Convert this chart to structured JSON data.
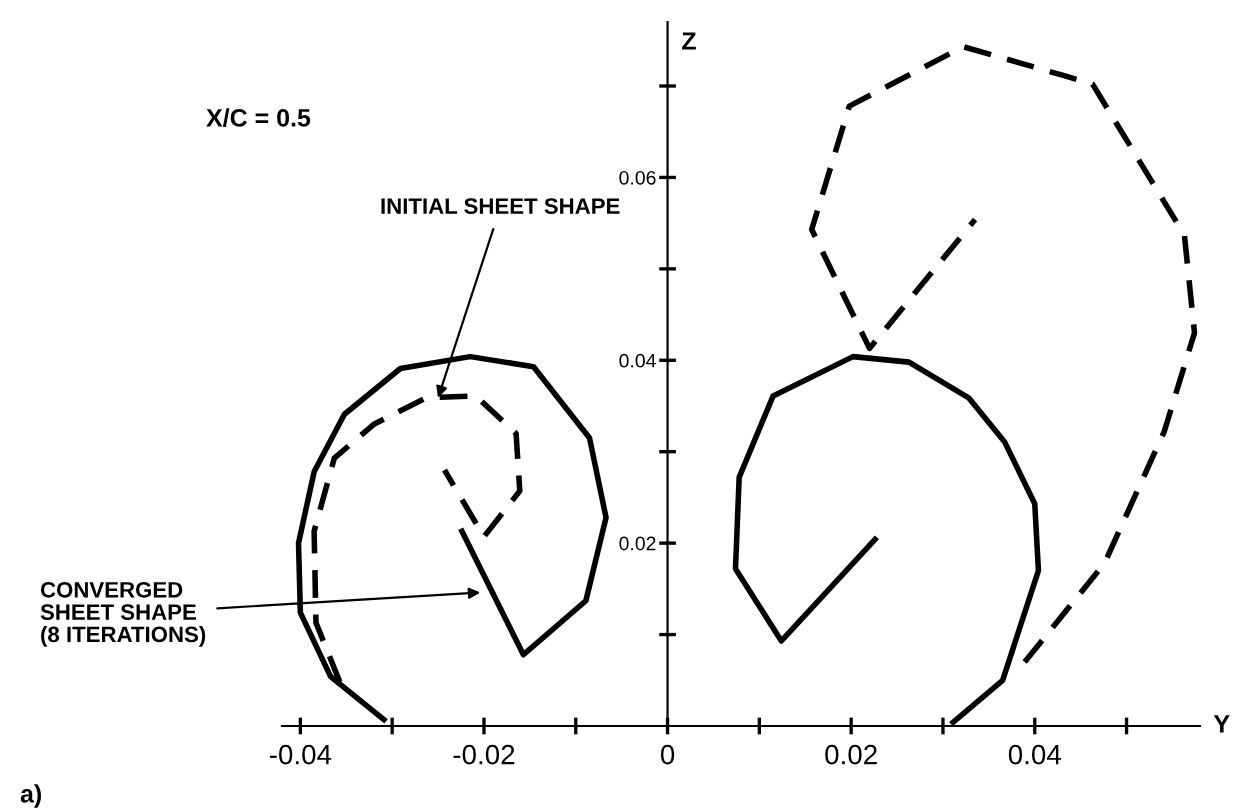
{
  "chart_data": {
    "type": "line",
    "xlabel": "Y",
    "ylabel": "Z",
    "xlim": [
      -0.042,
      0.058
    ],
    "ylim": [
      0,
      0.077
    ],
    "xticks": [
      -0.04,
      {
        "value": -0.03,
        "label": null
      },
      -0.02,
      {
        "value": -0.01,
        "label": null
      },
      0,
      {
        "value": 0.01,
        "label": null
      },
      0.02,
      {
        "value": 0.03,
        "label": null
      },
      0.04,
      {
        "value": 0.05,
        "label": null
      }
    ],
    "yticks": [
      {
        "value": 0.01,
        "label": null
      },
      0.02,
      {
        "value": 0.03,
        "label": null
      },
      0.04,
      {
        "value": 0.05,
        "label": null
      },
      0.06,
      {
        "value": 0.07,
        "label": null
      }
    ],
    "grid": false,
    "legend": false,
    "marker": "none",
    "series": [
      {
        "color": "#000000",
        "line_style": "solid",
        "x": [
          -0.0309,
          -0.0367,
          -0.04,
          -0.0402,
          -0.0385,
          -0.0352,
          -0.0291,
          -0.0215,
          -0.0146,
          -0.0085,
          -0.0067,
          -0.0089,
          -0.0157,
          -0.0224
        ],
        "values": [
          0.0007,
          0.0054,
          0.0124,
          0.02,
          0.0278,
          0.0341,
          0.0391,
          0.0404,
          0.0393,
          0.0315,
          0.0228,
          0.0137,
          0.0078,
          0.0213
        ]
      },
      {
        "color": "#000000",
        "line_style": "dashed",
        "x": [
          -0.0357,
          -0.0383,
          -0.0385,
          -0.0363,
          -0.032,
          -0.0263,
          -0.0209,
          -0.0165,
          -0.0161,
          -0.02,
          -0.0243
        ],
        "values": [
          0.0048,
          0.0113,
          0.0213,
          0.0293,
          0.033,
          0.0359,
          0.0361,
          0.032,
          0.0257,
          0.0207,
          0.028
        ]
      },
      {
        "color": "#000000",
        "line_style": "solid",
        "x": [
          0.0311,
          0.0365,
          0.0404,
          0.04,
          0.0367,
          0.0328,
          0.0263,
          0.0202,
          0.0115,
          0.0078,
          0.0074,
          0.0124,
          0.0226
        ],
        "values": [
          0.0004,
          0.005,
          0.017,
          0.0243,
          0.0311,
          0.0359,
          0.0398,
          0.0404,
          0.0361,
          0.0272,
          0.0172,
          0.0093,
          0.0204
        ]
      },
      {
        "color": "#000000",
        "line_style": "dashed",
        "x": [
          0.0389,
          0.0476,
          0.0541,
          0.0574,
          0.0563,
          0.0463,
          0.0433,
          0.0322,
          0.0198,
          0.0157,
          0.022,
          0.0335
        ],
        "values": [
          0.007,
          0.0178,
          0.0322,
          0.043,
          0.0537,
          0.0702,
          0.0711,
          0.0743,
          0.0678,
          0.0543,
          0.0413,
          0.0554
        ]
      }
    ],
    "annotations": [
      "X/C = 0.5",
      {
        "text": "INITIAL SHEET SHAPE",
        "x": -0.025,
        "y": 0.0359
      },
      {
        "text": "CONVERGED\nSHEET SHAPE\n(8 ITERATIONS)",
        "x": -0.0204,
        "y": 0.0146
      },
      "a)"
    ]
  }
}
